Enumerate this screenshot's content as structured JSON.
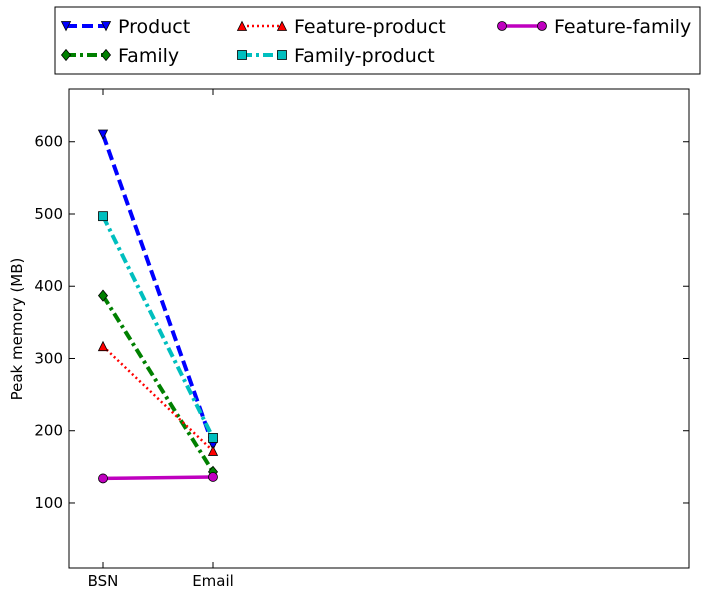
{
  "chart_data": {
    "type": "line",
    "categories": [
      "BSN",
      "Email"
    ],
    "ylabel": "Peak memory (MB)",
    "xlabel": "",
    "title": "",
    "ylim": [
      10,
      673
    ],
    "yticks": [
      100,
      200,
      300,
      400,
      500,
      600
    ],
    "grid": false,
    "legend_placement": "top, outside plot, 3 columns",
    "series": [
      {
        "name": "Product",
        "values": [
          610,
          180
        ],
        "color": "#0000ff",
        "dash": "dashed",
        "marker": "triangle-down"
      },
      {
        "name": "Family",
        "values": [
          387,
          143
        ],
        "color": "#008000",
        "dash": "dash-dot",
        "marker": "diamond"
      },
      {
        "name": "Feature-product",
        "values": [
          317,
          172
        ],
        "color": "#ff0000",
        "dash": "dotted",
        "marker": "triangle-up"
      },
      {
        "name": "Family-product",
        "values": [
          497,
          190
        ],
        "color": "#00bfbf",
        "dash": "dash-dot",
        "marker": "square"
      },
      {
        "name": "Feature-family",
        "values": [
          134,
          136
        ],
        "color": "#bf00bf",
        "dash": "solid",
        "marker": "circle"
      }
    ]
  }
}
